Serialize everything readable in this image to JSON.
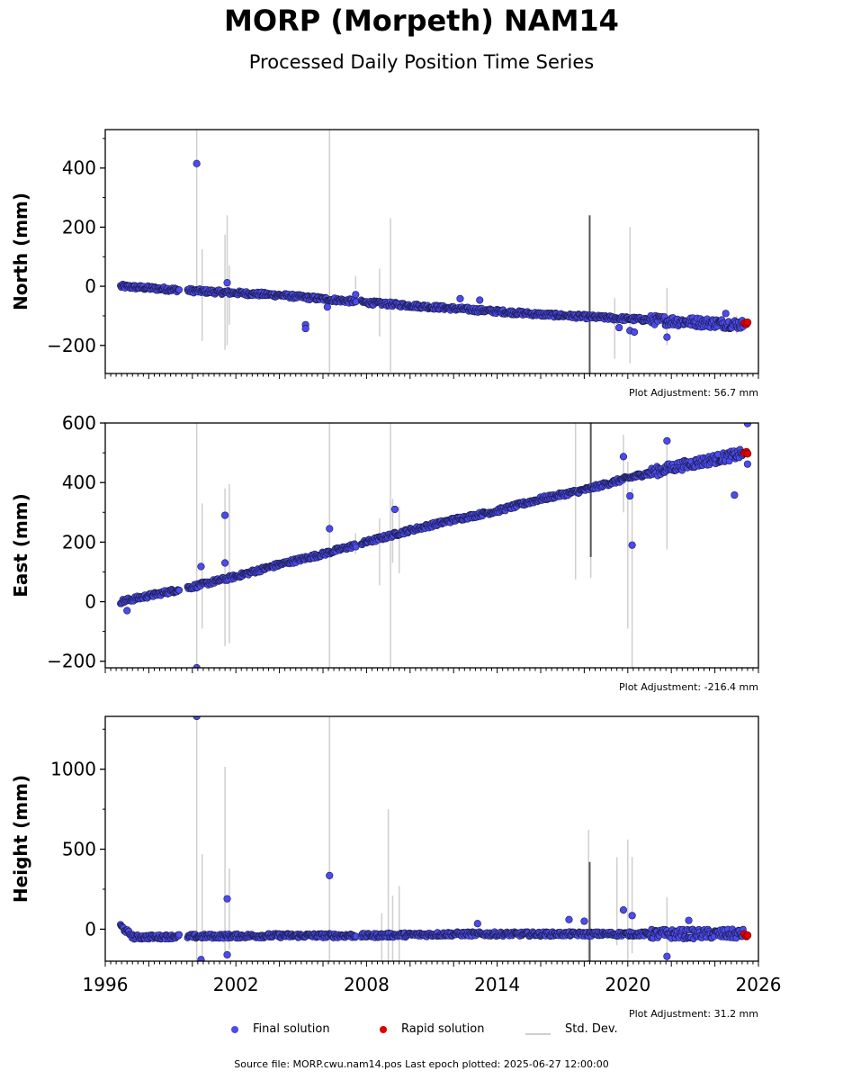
{
  "page": {
    "title": "MORP (Morpeth) NAM14",
    "subtitle": "Processed Daily Position Time Series",
    "footer": "Source file: MORP.cwu.nam14.pos  Last epoch plotted: 2025-06-27 12:00:00"
  },
  "legend": {
    "final_label": "Final solution",
    "rapid_label": "Rapid solution",
    "sd_label": "Std. Dev."
  },
  "colors": {
    "final": "#4b4bf0",
    "final_edge": "#1a1a40",
    "rapid": "#e00000",
    "stddev": "#cfcfcf",
    "stddev_dark": "#555555"
  },
  "chart_data": [
    {
      "type": "scatter",
      "ylabel": "North (mm)",
      "adjustment": "Plot Adjustment: 56.7 mm",
      "xlim": [
        1996,
        2026
      ],
      "ylim": [
        -295,
        530
      ],
      "yticks": [
        -200,
        0,
        200,
        400
      ],
      "ytick_labels": [
        "−200",
        "0",
        "200",
        "400"
      ],
      "trend": [
        [
          1996.7,
          0
        ],
        [
          2000,
          -15
        ],
        [
          2004,
          -30
        ],
        [
          2008,
          -55
        ],
        [
          2012,
          -75
        ],
        [
          2016,
          -95
        ],
        [
          2020,
          -110
        ],
        [
          2025.5,
          -130
        ]
      ],
      "outliers": [
        [
          2000.2,
          415
        ],
        [
          2001.6,
          12
        ],
        [
          2005.2,
          -130
        ],
        [
          2005.2,
          -143
        ],
        [
          2006.2,
          -70
        ],
        [
          2007.5,
          -28
        ],
        [
          2012.3,
          -42
        ],
        [
          2013.2,
          -47
        ],
        [
          2019.6,
          -140
        ],
        [
          2020.1,
          -150
        ],
        [
          2020.3,
          -155
        ],
        [
          2021.8,
          -172
        ],
        [
          2024.5,
          -92
        ]
      ],
      "rapid": [
        [
          2025.35,
          -125
        ],
        [
          2025.45,
          -128
        ],
        [
          2025.5,
          -122
        ]
      ],
      "stddev_light": [
        [
          2000.2,
          0,
          530
        ],
        [
          2000.45,
          -185,
          125
        ],
        [
          2001.5,
          -215,
          175
        ],
        [
          2001.6,
          -200,
          240
        ],
        [
          2001.7,
          -130,
          70
        ],
        [
          2006.3,
          -290,
          530
        ],
        [
          2007.5,
          -10,
          35
        ],
        [
          2008.6,
          -170,
          60
        ],
        [
          2009.1,
          -290,
          230
        ],
        [
          2019.4,
          -245,
          -40
        ],
        [
          2020.1,
          -260,
          200
        ],
        [
          2021.8,
          -200,
          -5
        ],
        [
          2025.0,
          -160,
          -100
        ]
      ],
      "stddev_dark": [
        [
          2018.25,
          -295,
          240
        ]
      ]
    },
    {
      "type": "scatter",
      "ylabel": "East (mm)",
      "adjustment": "Plot Adjustment: -216.4 mm",
      "xlim": [
        1996,
        2026
      ],
      "ylim": [
        -222,
        600
      ],
      "yticks": [
        -200,
        0,
        200,
        400,
        600
      ],
      "ytick_labels": [
        "−200",
        "0",
        "200",
        "400",
        "600"
      ],
      "trend": [
        [
          1996.7,
          0
        ],
        [
          2000,
          50
        ],
        [
          2002,
          85
        ],
        [
          2004,
          125
        ],
        [
          2006,
          160
        ],
        [
          2008,
          200
        ],
        [
          2010,
          240
        ],
        [
          2012,
          275
        ],
        [
          2014,
          305
        ],
        [
          2016,
          345
        ],
        [
          2018,
          375
        ],
        [
          2020,
          415
        ],
        [
          2022,
          450
        ],
        [
          2025.5,
          500
        ]
      ],
      "outliers": [
        [
          1997.0,
          -30
        ],
        [
          2000.2,
          -222
        ],
        [
          2000.4,
          118
        ],
        [
          2001.5,
          290
        ],
        [
          2001.5,
          130
        ],
        [
          2006.3,
          245
        ],
        [
          2009.3,
          310
        ],
        [
          2019.8,
          487
        ],
        [
          2020.1,
          355
        ],
        [
          2020.2,
          190
        ],
        [
          2021.8,
          540
        ],
        [
          2024.9,
          358
        ],
        [
          2025.5,
          598
        ],
        [
          2025.5,
          462
        ]
      ],
      "rapid": [
        [
          2025.35,
          500
        ],
        [
          2025.45,
          503
        ],
        [
          2025.5,
          497
        ]
      ],
      "stddev_light": [
        [
          2000.2,
          -222,
          600
        ],
        [
          2000.45,
          -90,
          330
        ],
        [
          2001.5,
          -150,
          380
        ],
        [
          2001.7,
          -140,
          395
        ],
        [
          2006.3,
          -222,
          600
        ],
        [
          2007.5,
          160,
          230
        ],
        [
          2008.6,
          55,
          280
        ],
        [
          2009.1,
          -222,
          600
        ],
        [
          2009.2,
          130,
          345
        ],
        [
          2009.5,
          95,
          320
        ],
        [
          2011.3,
          250,
          285
        ],
        [
          2017.6,
          75,
          600
        ],
        [
          2018.3,
          80,
          600
        ],
        [
          2019.8,
          300,
          560
        ],
        [
          2020.0,
          -90,
          470
        ],
        [
          2020.2,
          -222,
          380
        ],
        [
          2021.8,
          175,
          540
        ]
      ],
      "stddev_dark": [
        [
          2018.3,
          150,
          600
        ]
      ]
    },
    {
      "type": "scatter",
      "ylabel": "Height (mm)",
      "adjustment": "Plot Adjustment: 31.2 mm",
      "xlim": [
        1996,
        2026
      ],
      "ylim": [
        -200,
        1330
      ],
      "yticks": [
        0,
        500,
        1000
      ],
      "ytick_labels": [
        "0",
        "500",
        "1000"
      ],
      "xticks": [
        1996,
        2002,
        2008,
        2014,
        2020,
        2026
      ],
      "xtick_labels": [
        "1996",
        "2002",
        "2008",
        "2014",
        "2020",
        "2026"
      ],
      "trend": [
        [
          1996.7,
          20
        ],
        [
          1997.3,
          -50
        ],
        [
          2000,
          -45
        ],
        [
          2004,
          -40
        ],
        [
          2008,
          -40
        ],
        [
          2012,
          -30
        ],
        [
          2016,
          -30
        ],
        [
          2020,
          -30
        ],
        [
          2025.5,
          -30
        ]
      ],
      "outliers": [
        [
          2000.2,
          1330
        ],
        [
          2000.4,
          -190
        ],
        [
          2001.6,
          190
        ],
        [
          2001.6,
          -160
        ],
        [
          2006.3,
          335
        ],
        [
          2017.3,
          60
        ],
        [
          2018.0,
          50
        ],
        [
          2019.8,
          120
        ],
        [
          2020.2,
          85
        ],
        [
          2021.8,
          -170
        ],
        [
          2022.8,
          55
        ],
        [
          2013.1,
          35
        ]
      ],
      "rapid": [
        [
          2025.35,
          -30
        ],
        [
          2025.45,
          -45
        ],
        [
          2025.5,
          -38
        ]
      ],
      "stddev_light": [
        [
          2000.2,
          -200,
          1330
        ],
        [
          2000.45,
          -190,
          470
        ],
        [
          2001.5,
          -160,
          1015
        ],
        [
          2001.7,
          -130,
          380
        ],
        [
          2006.3,
          -200,
          1330
        ],
        [
          2008.7,
          -200,
          100
        ],
        [
          2009.0,
          -200,
          750
        ],
        [
          2009.2,
          -200,
          210
        ],
        [
          2009.5,
          -200,
          270
        ],
        [
          2018.2,
          -200,
          620
        ],
        [
          2019.5,
          -100,
          450
        ],
        [
          2020.0,
          -200,
          560
        ],
        [
          2020.2,
          -150,
          450
        ],
        [
          2021.8,
          -200,
          200
        ]
      ],
      "stddev_dark": [
        [
          2018.25,
          -200,
          420
        ]
      ]
    }
  ]
}
